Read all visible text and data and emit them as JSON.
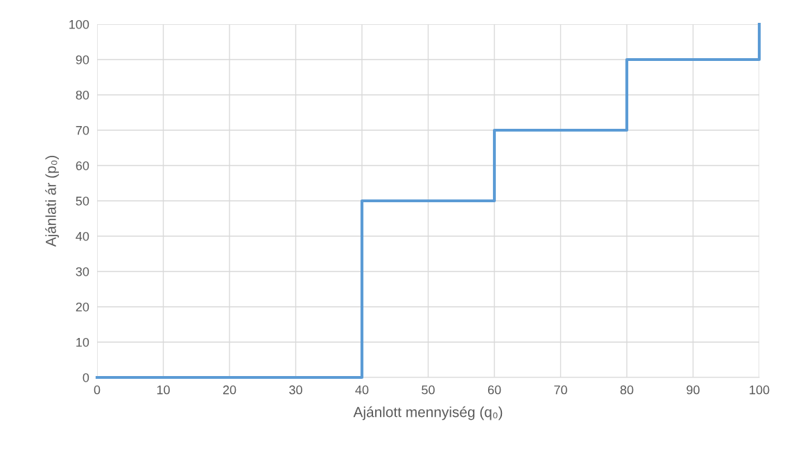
{
  "chart_data": {
    "type": "step",
    "xlabel": "Ajánlott mennyiség (q₀)",
    "ylabel": "Ajánlati ár (p₀)",
    "x": [
      0,
      40,
      60,
      80,
      100
    ],
    "series": [
      {
        "color": "#5b9bd5",
        "values": [
          0,
          50,
          70,
          90,
          100
        ]
      }
    ],
    "xlim": [
      0,
      100
    ],
    "xticks": [
      0,
      10,
      20,
      30,
      40,
      50,
      60,
      70,
      80,
      90,
      100
    ],
    "ylim": [
      0,
      100
    ],
    "yticks": [
      0,
      10,
      20,
      30,
      40,
      50,
      60,
      70,
      80,
      90,
      100
    ],
    "grid": true,
    "legend": false,
    "marker": "none",
    "line_style": "solid"
  }
}
